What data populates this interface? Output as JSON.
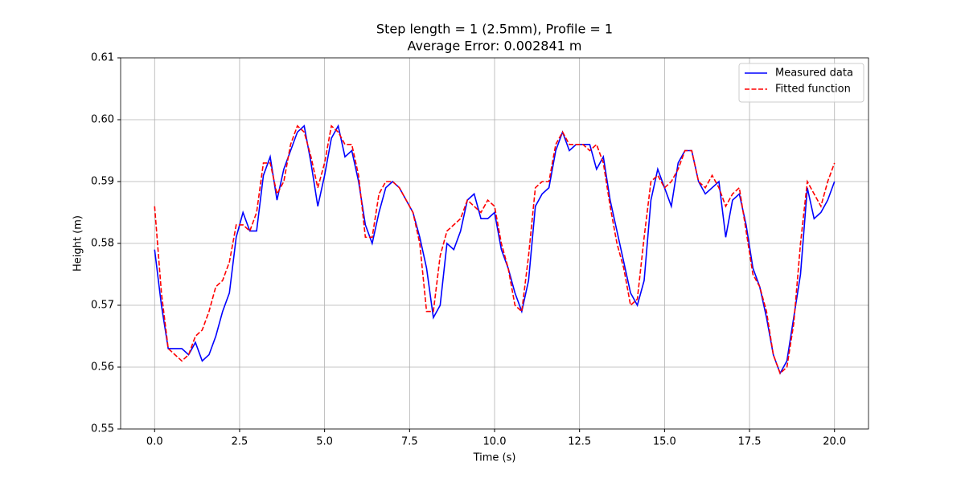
{
  "chart_data": {
    "type": "line",
    "title": "Step length = 1 (2.5mm), Profile = 1",
    "subtitle": "Average Error: 0.002841 m",
    "x_label": "Time (s)",
    "y_label": "Height (m)",
    "x": [
      0,
      0.2,
      0.4,
      0.6,
      0.8,
      1,
      1.2,
      1.4,
      1.6,
      1.8,
      2,
      2.2,
      2.4,
      2.6,
      2.8,
      3,
      3.2,
      3.4,
      3.6,
      3.8,
      4,
      4.2,
      4.4,
      4.6,
      4.8,
      5,
      5.2,
      5.4,
      5.6,
      5.8,
      6,
      6.2,
      6.4,
      6.6,
      6.8,
      7,
      7.2,
      7.4,
      7.6,
      7.8,
      8,
      8.2,
      8.4,
      8.6,
      8.8,
      9,
      9.2,
      9.4,
      9.6,
      9.8,
      10,
      10.2,
      10.4,
      10.6,
      10.8,
      11,
      11.2,
      11.4,
      11.6,
      11.8,
      12,
      12.2,
      12.4,
      12.6,
      12.8,
      13,
      13.2,
      13.4,
      13.6,
      13.8,
      14,
      14.2,
      14.4,
      14.6,
      14.8,
      15,
      15.2,
      15.4,
      15.6,
      15.8,
      16,
      16.2,
      16.4,
      16.6,
      16.8,
      17,
      17.2,
      17.4,
      17.6,
      17.8,
      18,
      18.2,
      18.4,
      18.6,
      18.8,
      19,
      19.2,
      19.4,
      19.6,
      19.8,
      20
    ],
    "series": [
      {
        "name": "Measured data",
        "color": "#0000ff",
        "linestyle": "solid",
        "values": [
          0.579,
          0.57,
          0.563,
          0.563,
          0.563,
          0.562,
          0.564,
          0.561,
          0.562,
          0.565,
          0.569,
          0.572,
          0.581,
          0.585,
          0.582,
          0.582,
          0.591,
          0.594,
          0.587,
          0.592,
          0.595,
          0.598,
          0.599,
          0.593,
          0.586,
          0.591,
          0.597,
          0.599,
          0.594,
          0.595,
          0.59,
          0.583,
          0.58,
          0.585,
          0.589,
          0.59,
          0.589,
          0.587,
          0.585,
          0.581,
          0.576,
          0.568,
          0.57,
          0.58,
          0.579,
          0.582,
          0.587,
          0.588,
          0.584,
          0.584,
          0.585,
          0.579,
          0.576,
          0.572,
          0.569,
          0.574,
          0.586,
          0.588,
          0.589,
          0.595,
          0.598,
          0.595,
          0.596,
          0.596,
          0.596,
          0.592,
          0.594,
          0.587,
          0.582,
          0.577,
          0.572,
          0.57,
          0.574,
          0.587,
          0.592,
          0.589,
          0.586,
          0.593,
          0.595,
          0.595,
          0.59,
          0.588,
          0.589,
          0.59,
          0.581,
          0.587,
          0.588,
          0.583,
          0.576,
          0.573,
          0.568,
          0.562,
          0.559,
          0.561,
          0.568,
          0.575,
          0.589,
          0.584,
          0.585,
          0.587,
          0.59
        ]
      },
      {
        "name": "Fitted function",
        "color": "#ff0000",
        "linestyle": "dashed",
        "values": [
          0.586,
          0.572,
          0.563,
          0.562,
          0.561,
          0.562,
          0.565,
          0.566,
          0.569,
          0.573,
          0.574,
          0.577,
          0.583,
          0.583,
          0.582,
          0.585,
          0.593,
          0.593,
          0.588,
          0.59,
          0.596,
          0.599,
          0.598,
          0.594,
          0.589,
          0.593,
          0.599,
          0.598,
          0.596,
          0.596,
          0.591,
          0.581,
          0.581,
          0.588,
          0.59,
          0.59,
          0.589,
          0.587,
          0.585,
          0.58,
          0.569,
          0.569,
          0.578,
          0.582,
          0.583,
          0.584,
          0.587,
          0.586,
          0.585,
          0.587,
          0.586,
          0.58,
          0.576,
          0.57,
          0.569,
          0.578,
          0.589,
          0.59,
          0.59,
          0.596,
          0.598,
          0.596,
          0.596,
          0.596,
          0.595,
          0.596,
          0.593,
          0.586,
          0.58,
          0.576,
          0.57,
          0.571,
          0.581,
          0.59,
          0.591,
          0.589,
          0.59,
          0.592,
          0.595,
          0.595,
          0.59,
          0.589,
          0.591,
          0.589,
          0.586,
          0.588,
          0.589,
          0.582,
          0.575,
          0.573,
          0.569,
          0.562,
          0.559,
          0.56,
          0.567,
          0.58,
          0.59,
          0.588,
          0.586,
          0.59,
          0.593
        ]
      }
    ],
    "xlim": [
      -1,
      21
    ],
    "xticks": [
      {
        "value": 0,
        "label": "0.0"
      },
      {
        "value": 2.5,
        "label": "2.5"
      },
      {
        "value": 5,
        "label": "5.0"
      },
      {
        "value": 7.5,
        "label": "7.5"
      },
      {
        "value": 10,
        "label": "10.0"
      },
      {
        "value": 12.5,
        "label": "12.5"
      },
      {
        "value": 15,
        "label": "15.0"
      },
      {
        "value": 17.5,
        "label": "17.5"
      },
      {
        "value": 20,
        "label": "20.0"
      }
    ],
    "ylim": [
      0.55,
      0.61
    ],
    "yticks": [
      0.55,
      0.56,
      0.57,
      0.58,
      0.59,
      {
        "value": 0.6,
        "label": "0.60"
      },
      0.61
    ],
    "grid": true,
    "legend": "upper right"
  }
}
